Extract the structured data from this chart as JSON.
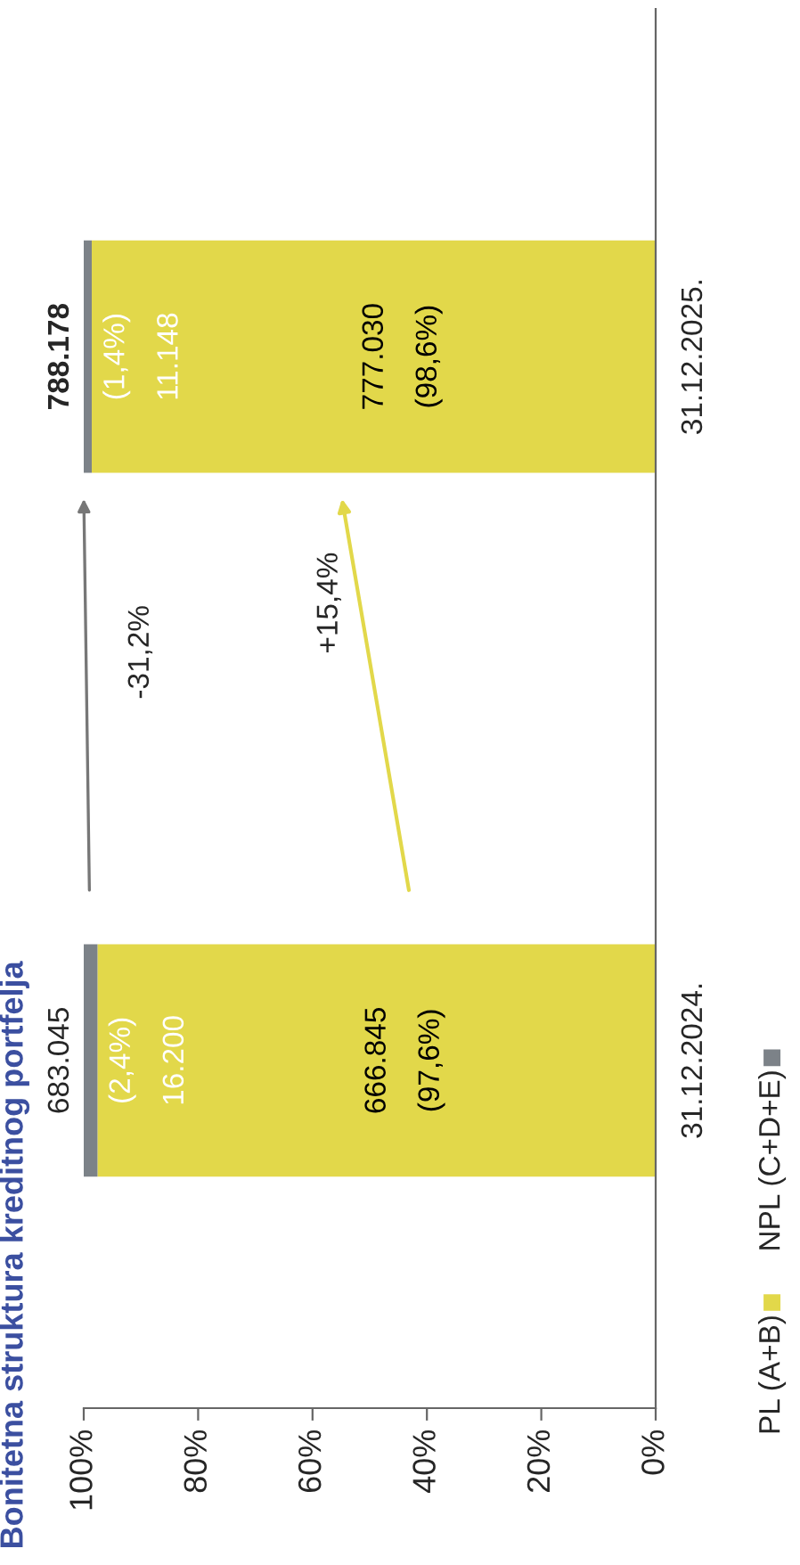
{
  "chart_data": {
    "type": "bar",
    "orientation": "horizontal",
    "stacked": true,
    "title": "Bonitetna struktura kreditnog portfelja",
    "categories": [
      "31.12.2025.",
      "31.12.2024."
    ],
    "series": [
      {
        "name": "PL (A+B)",
        "color": "#e2d84a",
        "values": [
          98.6,
          97.6
        ],
        "value_labels": [
          "777.030\n(98,6%)",
          "666.845\n(97,6%)"
        ]
      },
      {
        "name": "NPL (C+D+E)",
        "color": "#7c8288",
        "values": [
          1.4,
          2.4
        ],
        "value_labels": [
          "(1,4%)\n11.148",
          "(2,4%)\n16.200"
        ]
      }
    ],
    "xlim": [
      100,
      0
    ],
    "xticks": [
      {
        "value": 100,
        "label": "100%"
      },
      {
        "value": 80,
        "label": "80%"
      },
      {
        "value": 60,
        "label": "60%"
      },
      {
        "value": 40,
        "label": "40%"
      },
      {
        "value": 20,
        "label": "20%"
      },
      {
        "value": 0,
        "label": "0%"
      }
    ],
    "annotations": [
      {
        "text": "788.178",
        "x": 100,
        "y": "31.12.2025."
      },
      {
        "text": "683.045",
        "x": 100,
        "y": "31.12.2024."
      },
      "-31,2%",
      "+15,4%"
    ],
    "legend": "right",
    "grid": false
  }
}
